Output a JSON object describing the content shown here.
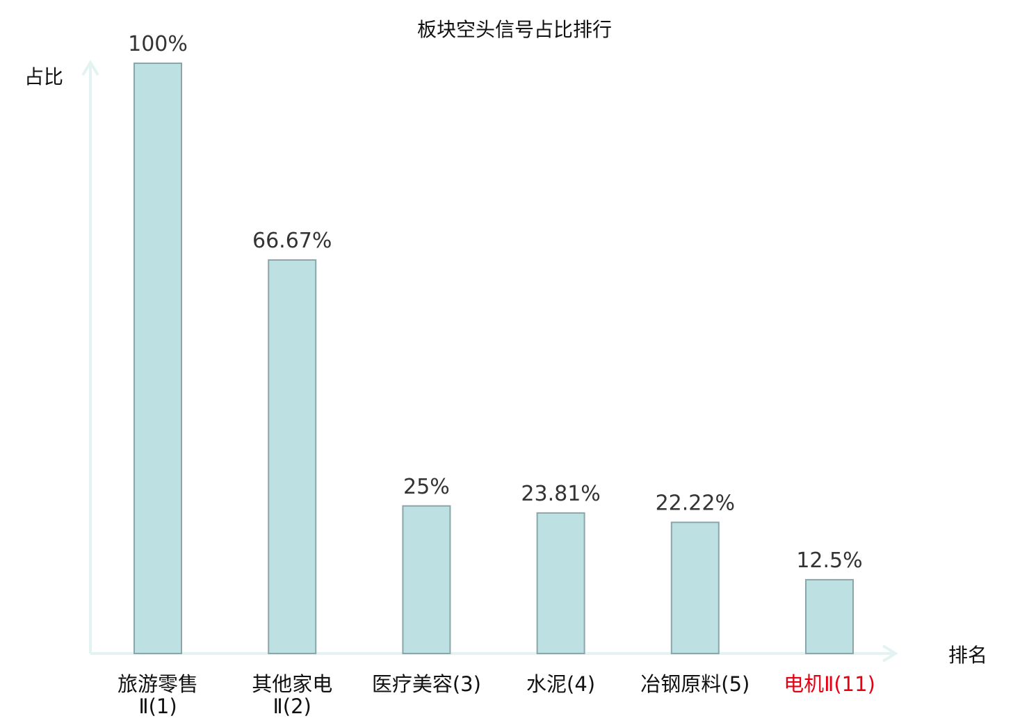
{
  "chart_data": {
    "type": "bar",
    "title": "板块空头信号占比排行",
    "ylabel": "占比",
    "xlabel": "排名",
    "ylim": [
      0,
      100
    ],
    "grid": false,
    "categories": [
      [
        "旅游零售",
        "Ⅱ(1)"
      ],
      [
        "其他家电",
        "Ⅱ(2)"
      ],
      [
        "医疗美容(3)"
      ],
      [
        "水泥(4)"
      ],
      [
        "冶钢原料(5)"
      ],
      [
        "电机Ⅱ(11)"
      ]
    ],
    "values": [
      100,
      66.67,
      25,
      23.81,
      22.22,
      12.5
    ],
    "value_labels": [
      "100%",
      "66.67%",
      "25%",
      "23.81%",
      "22.22%",
      "12.5%"
    ],
    "highlight_index": 5,
    "colors": {
      "bar_fill": "#bde0e3",
      "bar_stroke": "#8aa6ab",
      "axis": "#e2f3f1",
      "highlight_text": "#e60012",
      "text": "#111111",
      "value_text": "#333333"
    }
  }
}
